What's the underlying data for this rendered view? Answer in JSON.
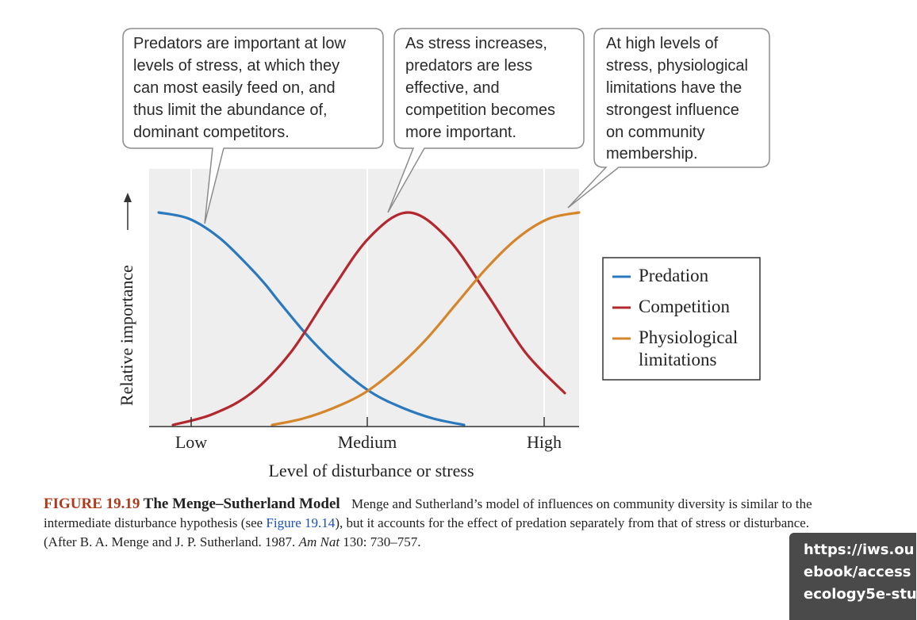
{
  "chart_data": {
    "type": "line",
    "title": "",
    "xlabel": "Level of disturbance or stress",
    "ylabel": "Relative importance",
    "x_ticks": [
      "Low",
      "Medium",
      "High"
    ],
    "grid": true,
    "legend_position": "right",
    "series": [
      {
        "name": "Predation",
        "color": "#2a78be",
        "x": [
          0.0,
          0.1,
          0.2,
          0.3,
          0.35,
          0.4,
          0.5,
          0.6,
          0.7,
          0.8,
          0.9,
          1.0
        ],
        "y": [
          1.0,
          0.97,
          0.88,
          0.74,
          0.66,
          0.57,
          0.4,
          0.26,
          0.15,
          0.08,
          0.03,
          0.0
        ]
      },
      {
        "name": "Competition",
        "color": "#b3272e",
        "x": [
          0.0,
          0.1,
          0.2,
          0.3,
          0.4,
          0.5,
          0.6,
          0.7,
          0.8,
          0.9,
          1.0
        ],
        "y": [
          0.0,
          0.05,
          0.15,
          0.34,
          0.62,
          0.88,
          1.0,
          0.88,
          0.62,
          0.34,
          0.15
        ]
      },
      {
        "name": "Physiological limitations",
        "color": "#d5852a",
        "x": [
          0.0,
          0.1,
          0.2,
          0.3,
          0.4,
          0.5,
          0.6,
          0.7,
          0.8,
          0.9,
          1.0
        ],
        "y": [
          0.0,
          0.03,
          0.08,
          0.15,
          0.26,
          0.4,
          0.57,
          0.74,
          0.88,
          0.97,
          1.0
        ]
      }
    ]
  },
  "legend": {
    "items": [
      {
        "label": "Predation",
        "color": "#2a78be"
      },
      {
        "label": "Competition",
        "color": "#b3272e"
      },
      {
        "label": "Physiological",
        "color": "#d5852a",
        "label2": "limitations"
      }
    ]
  },
  "bubbles": [
    {
      "lines": [
        "Predators are important at low",
        "levels of stress, at which they",
        "can most easily feed on, and",
        "thus limit the abundance of,",
        "dominant competitors."
      ]
    },
    {
      "lines": [
        "As stress increases,",
        "predators are less",
        "effective, and",
        "competition becomes",
        "more important."
      ]
    },
    {
      "lines": [
        "At high levels of",
        "stress, physiological",
        "limitations have the",
        "strongest influence",
        "on community",
        "membership."
      ]
    }
  ],
  "caption": {
    "fig_num": "FIGURE 19.19",
    "fig_title": "The Menge–Sutherland Model",
    "text_1": "Menge and Sutherland’s model of influences on community diversity is similar to the intermediate disturbance hypothesis (see ",
    "link": "Figure 19.14",
    "text_2": "), but it accounts for the effect of predation separately from that of stress or disturbance. (After B. A. Menge and J. P. Sutherland. 1987. ",
    "journal": "Am Nat",
    "text_3": " 130: 730–757."
  },
  "url_badge": {
    "lines": [
      "https://iws.ou",
      "ebook/access",
      "ecology5e-stu"
    ]
  }
}
